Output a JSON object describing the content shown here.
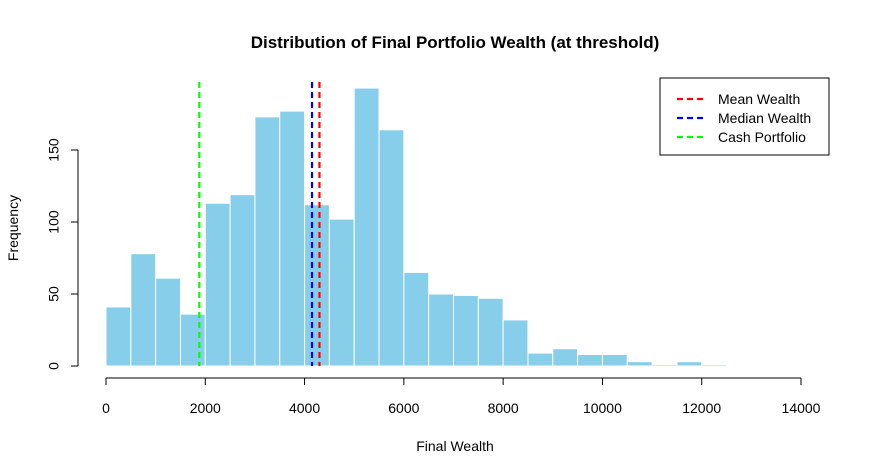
{
  "chart_data": {
    "type": "bar",
    "title": "Distribution of Final Portfolio Wealth (at threshold)",
    "xlabel": "Final Wealth",
    "ylabel": "Frequency",
    "xlim": [
      0,
      14000
    ],
    "ylim": [
      0,
      150
    ],
    "x_ticks": [
      0,
      2000,
      4000,
      6000,
      8000,
      10000,
      12000,
      14000
    ],
    "y_ticks": [
      0,
      50,
      100,
      150
    ],
    "bin_width": 500,
    "bins_start": [
      0,
      500,
      1000,
      1500,
      2000,
      2500,
      3000,
      3500,
      4000,
      4500,
      5000,
      5500,
      6000,
      6500,
      7000,
      7500,
      8000,
      8500,
      9000,
      9500,
      10000,
      10500,
      11000,
      11500,
      12000
    ],
    "values": [
      41,
      78,
      61,
      36,
      113,
      119,
      173,
      177,
      112,
      102,
      193,
      164,
      65,
      50,
      49,
      47,
      32,
      9,
      12,
      8,
      8,
      3,
      1,
      3,
      1
    ],
    "bar_color": "#87CEEB",
    "vlines": [
      {
        "name": "Mean Wealth",
        "x": 4300,
        "color": "#FF0000"
      },
      {
        "name": "Median Wealth",
        "x": 4150,
        "color": "#0000FF"
      },
      {
        "name": "Cash Portfolio",
        "x": 1880,
        "color": "#00FF00"
      }
    ],
    "legend_position": "top-right",
    "grid": false
  }
}
